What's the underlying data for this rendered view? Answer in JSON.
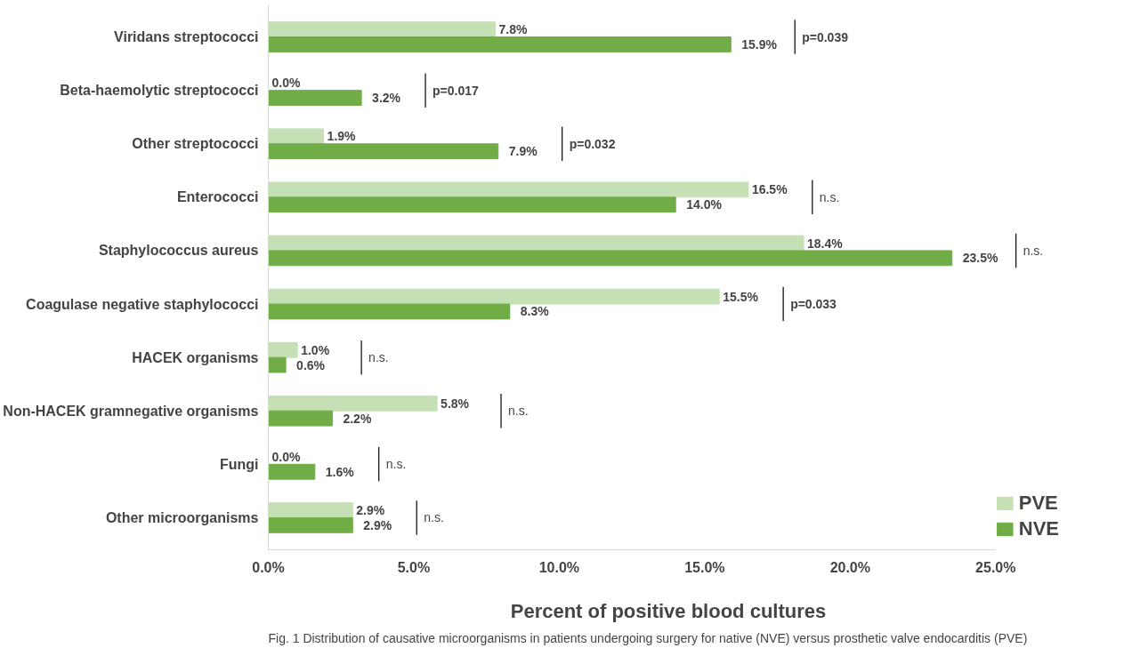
{
  "chart_data": {
    "type": "bar",
    "orientation": "horizontal",
    "categories": [
      "Viridans streptococci",
      "Beta-haemolytic streptococci",
      "Other streptococci",
      "Enterococci",
      "Staphylococcus aureus",
      "Coagulase negative staphylococci",
      "HACEK organisms",
      "Non-HACEK gramnegative organisms",
      "Fungi",
      "Other microorganisms"
    ],
    "series": [
      {
        "name": "PVE",
        "color": "#c5e0b4",
        "values": [
          7.8,
          0.0,
          1.9,
          16.5,
          18.4,
          15.5,
          1.0,
          5.8,
          0.0,
          2.9
        ],
        "value_labels": [
          "7.8%",
          "0.0%",
          "1.9%",
          "16.5%",
          "18.4%",
          "15.5%",
          "1.0%",
          "5.8%",
          "0.0%",
          "2.9%"
        ]
      },
      {
        "name": "NVE",
        "color": "#70ad47",
        "values": [
          15.9,
          3.2,
          7.9,
          14.0,
          23.5,
          8.3,
          0.6,
          2.2,
          1.6,
          2.9
        ],
        "value_labels": [
          "15.9%",
          "3.2%",
          "7.9%",
          "14.0%",
          "23.5%",
          "8.3%",
          "0.6%",
          "2.2%",
          "1.6%",
          "2.9%"
        ]
      }
    ],
    "xlim": [
      0,
      25
    ],
    "xticks": [
      {
        "value": 0,
        "label": "0.0%"
      },
      {
        "value": 5,
        "label": "5.0%"
      },
      {
        "value": 10,
        "label": "10.0%"
      },
      {
        "value": 15,
        "label": "15.0%"
      },
      {
        "value": 20,
        "label": "20.0%"
      },
      {
        "value": 25,
        "label": "25.0%"
      }
    ],
    "xlabel": "Percent of positive blood cultures",
    "annotations": [
      "p=0.039",
      "p=0.017",
      "p=0.032",
      "n.s.",
      "n.s.",
      "p=0.033",
      "n.s.",
      "n.s.",
      "n.s.",
      "n.s.",
      "Fig. 1 Distribution of causative microorganisms in patients undergoing surgery for native (NVE) versus prosthetic valve endocarditis (PVE)"
    ],
    "legend": "bottom right",
    "grid": false
  }
}
